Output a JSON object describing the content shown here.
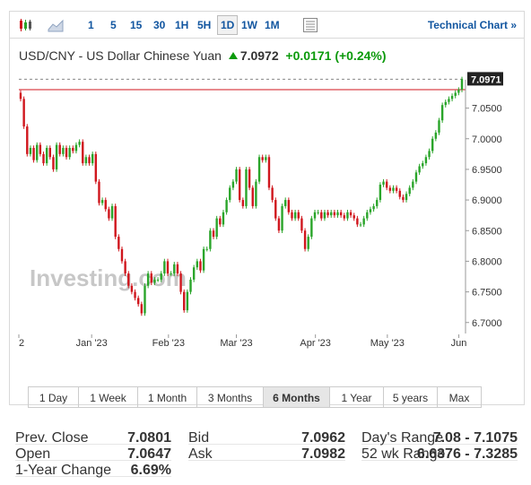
{
  "toolbar": {
    "timeframes": [
      "1",
      "5",
      "15",
      "30",
      "1H",
      "5H",
      "1D",
      "1W",
      "1M"
    ],
    "active_timeframe": "1D",
    "technical_chart_label": "Technical Chart »"
  },
  "header": {
    "pair": "USD/CNY - US Dollar Chinese Yuan",
    "price": "7.0972",
    "change": "+0.0171",
    "change_pct": "(+0.24%)"
  },
  "watermark": "Investing.com",
  "ranges": [
    "1 Day",
    "1 Week",
    "1 Month",
    "3 Months",
    "6 Months",
    "1 Year",
    "5 years",
    "Max"
  ],
  "active_range": "6 Months",
  "stats": {
    "col1": [
      {
        "label": "Prev. Close",
        "value": "7.0801"
      },
      {
        "label": "Open",
        "value": "7.0647"
      },
      {
        "label": "1-Year Change",
        "value": "6.69%"
      }
    ],
    "col2": [
      {
        "label": "Bid",
        "value": "7.0962"
      },
      {
        "label": "Ask",
        "value": "7.0982"
      }
    ],
    "col3": [
      {
        "label": "Day's Range",
        "value": "7.08 - 7.1075"
      },
      {
        "label": "52 wk Range",
        "value": "6.6376 - 7.3285"
      }
    ]
  },
  "colors": {
    "up": "#2aa52a",
    "down": "#d0161d",
    "last_line": "#d0161d",
    "label_bg": "#222222"
  },
  "chart_data": {
    "type": "candlestick",
    "y_ticks": [
      "7.0500",
      "7.0000",
      "6.9500",
      "6.9000",
      "6.8500",
      "6.8000",
      "6.7500",
      "6.7000"
    ],
    "y_range": [
      6.685,
      7.105
    ],
    "x_ticks": [
      "2",
      "Jan '23",
      "Feb '23",
      "Mar '23",
      "Apr '23",
      "May '23",
      "Jun"
    ],
    "last_value_label": "7.0971",
    "last_value": 7.0971,
    "prev_close_line": 7.0801,
    "approx_closes": [
      7.065,
      7.02,
      6.975,
      6.985,
      6.965,
      6.99,
      6.975,
      6.96,
      6.985,
      6.97,
      6.95,
      6.99,
      6.975,
      6.985,
      6.97,
      6.985,
      6.98,
      6.99,
      6.995,
      6.96,
      6.97,
      6.96,
      6.975,
      6.93,
      6.895,
      6.9,
      6.885,
      6.87,
      6.89,
      6.84,
      6.82,
      6.8,
      6.78,
      6.76,
      6.75,
      6.74,
      6.73,
      6.715,
      6.76,
      6.78,
      6.765,
      6.77,
      6.77,
      6.78,
      6.8,
      6.78,
      6.78,
      6.795,
      6.78,
      6.75,
      6.72,
      6.75,
      6.77,
      6.79,
      6.8,
      6.785,
      6.82,
      6.82,
      6.85,
      6.84,
      6.87,
      6.86,
      6.88,
      6.9,
      6.92,
      6.93,
      6.95,
      6.9,
      6.89,
      6.95,
      6.92,
      6.89,
      6.93,
      6.97,
      6.965,
      6.97,
      6.92,
      6.9,
      6.87,
      6.85,
      6.89,
      6.9,
      6.88,
      6.87,
      6.88,
      6.87,
      6.85,
      6.82,
      6.84,
      6.87,
      6.88,
      6.88,
      6.87,
      6.88,
      6.875,
      6.88,
      6.875,
      6.88,
      6.875,
      6.87,
      6.88,
      6.875,
      6.87,
      6.86,
      6.86,
      6.87,
      6.88,
      6.885,
      6.89,
      6.9,
      6.925,
      6.93,
      6.92,
      6.915,
      6.92,
      6.915,
      6.905,
      6.9,
      6.91,
      6.92,
      6.93,
      6.945,
      6.955,
      6.96,
      6.97,
      6.98,
      7.0,
      7.01,
      7.03,
      7.055,
      7.06,
      7.065,
      7.07,
      7.075,
      7.08,
      7.0971
    ]
  }
}
